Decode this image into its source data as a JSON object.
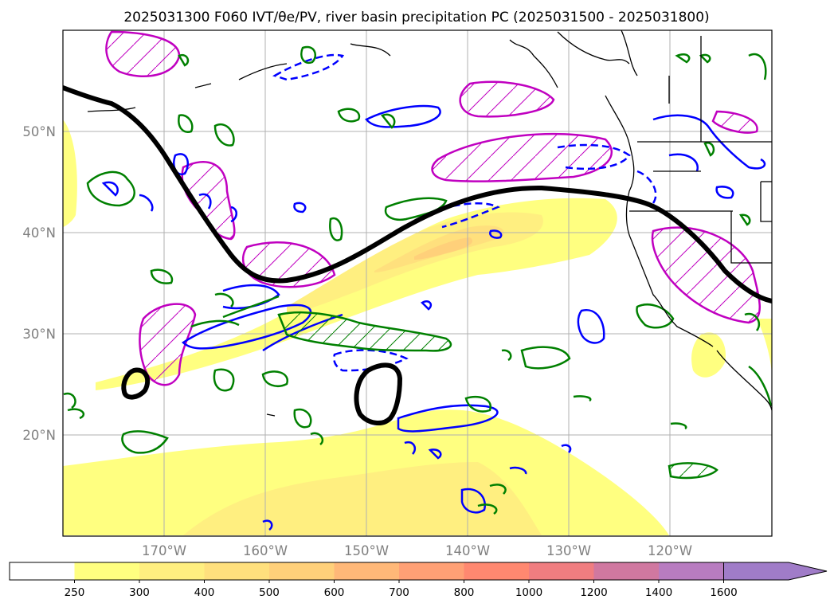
{
  "title": "2025031300 F060 IVT/θe/PV, river basin precipitation PC (2025031500 - 2025031800)",
  "map": {
    "lat_labels": [
      "50°N",
      "40°N",
      "30°N",
      "20°N"
    ],
    "lon_labels": [
      "170°W",
      "160°W",
      "150°W",
      "140°W",
      "130°W",
      "120°W"
    ],
    "extent": {
      "lon_min": -180,
      "lon_max": -110,
      "lat_min": 10,
      "lat_max": 60
    }
  },
  "colorbar": {
    "levels": [
      "250",
      "300",
      "400",
      "500",
      "600",
      "700",
      "800",
      "1000",
      "1200",
      "1400",
      "1600"
    ],
    "colors": [
      "#ffffff",
      "#ffff80",
      "#ffef80",
      "#ffe07d",
      "#ffd07a",
      "#ffb878",
      "#ffa075",
      "#ff8870",
      "#f07d80",
      "#d078a0",
      "#b87cc0",
      "#a07cc8"
    ],
    "extend": "max"
  },
  "legend_colors": {
    "ivt_fill_low": "#ffff80",
    "ivt_fill_mid": "#ffd07a",
    "ivt_fill_high": "#ffa075",
    "theta_e_contour": "#0000ff",
    "pv_contour": "#008000",
    "precip_region": "#c000c0",
    "thick_contour": "#000000"
  }
}
